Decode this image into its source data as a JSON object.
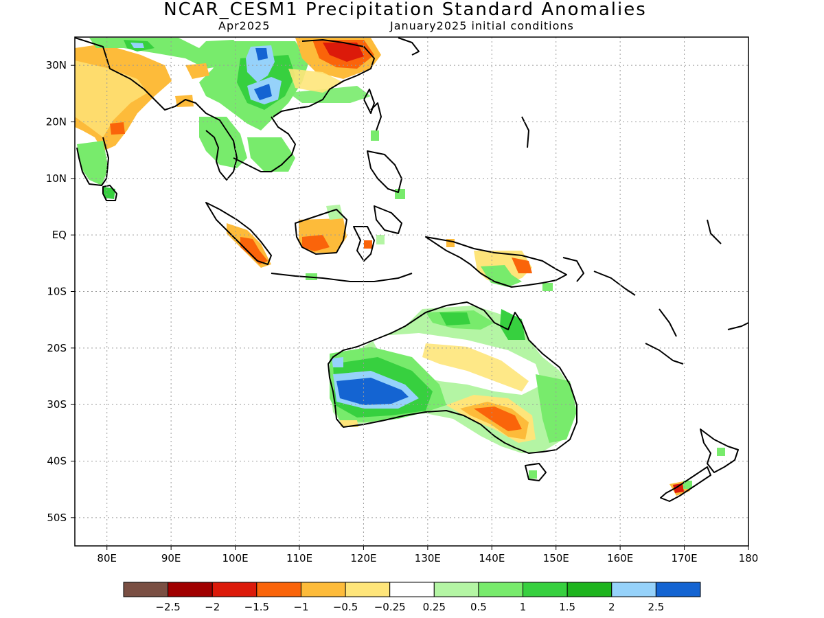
{
  "title": "NCAR_CESM1 Precipitation Standard Anomalies",
  "subtitle_left": "Apr2025",
  "subtitle_right": "January2025 initial conditions",
  "map": {
    "lon_range": [
      75,
      180
    ],
    "lat_range": [
      -55,
      35
    ],
    "lat_labels": [
      {
        "lat": 30,
        "text": "30N"
      },
      {
        "lat": 20,
        "text": "20N"
      },
      {
        "lat": 10,
        "text": "10N"
      },
      {
        "lat": 0,
        "text": "EQ"
      },
      {
        "lat": -10,
        "text": "10S"
      },
      {
        "lat": -20,
        "text": "20S"
      },
      {
        "lat": -30,
        "text": "30S"
      },
      {
        "lat": -40,
        "text": "40S"
      },
      {
        "lat": -50,
        "text": "50S"
      }
    ],
    "lon_labels": [
      {
        "lon": 80,
        "text": "80E"
      },
      {
        "lon": 90,
        "text": "90E"
      },
      {
        "lon": 100,
        "text": "100E"
      },
      {
        "lon": 110,
        "text": "110E"
      },
      {
        "lon": 120,
        "text": "120E"
      },
      {
        "lon": 130,
        "text": "130E"
      },
      {
        "lon": 140,
        "text": "140E"
      },
      {
        "lon": 150,
        "text": "150E"
      },
      {
        "lon": 160,
        "text": "160E"
      },
      {
        "lon": 170,
        "text": "170E"
      },
      {
        "lon": 180,
        "text": "180"
      }
    ],
    "grid": "dotted"
  },
  "colorbar": {
    "colors": [
      "#7a4f43",
      "#a00000",
      "#dc1a0a",
      "#fa640a",
      "#fdbb3a",
      "#fee57a",
      "#ffffff",
      "#b4f5a4",
      "#78eb6c",
      "#37d03f",
      "#1eb41e",
      "#96d2fa",
      "#1464d2"
    ],
    "labels": [
      "−2.5",
      "−2",
      "−1.5",
      "−1",
      "−0.5",
      "−0.25",
      "0.25",
      "0.5",
      "1",
      "1.5",
      "2",
      "2.5"
    ]
  },
  "anomalies": [
    {
      "name": "western-australia-wet",
      "lon": 122,
      "lat": -27,
      "value": 2.5
    },
    {
      "name": "south-australia-dry",
      "lon": 140,
      "lat": -33,
      "value": -1
    },
    {
      "name": "borneo-dry",
      "lon": 113,
      "lat": -1,
      "value": -1
    },
    {
      "name": "sumatra-dry",
      "lon": 103,
      "lat": -3,
      "value": -1.5
    },
    {
      "name": "east-china-dry",
      "lon": 118,
      "lat": 33,
      "value": -1.5
    },
    {
      "name": "yunnan-wet",
      "lon": 102,
      "lat": 26,
      "value": 2.5
    },
    {
      "name": "new-guinea-dry",
      "lon": 143,
      "lat": -5,
      "value": -1
    },
    {
      "name": "new-zealand-dry",
      "lon": 169,
      "lat": -45,
      "value": -2
    }
  ]
}
